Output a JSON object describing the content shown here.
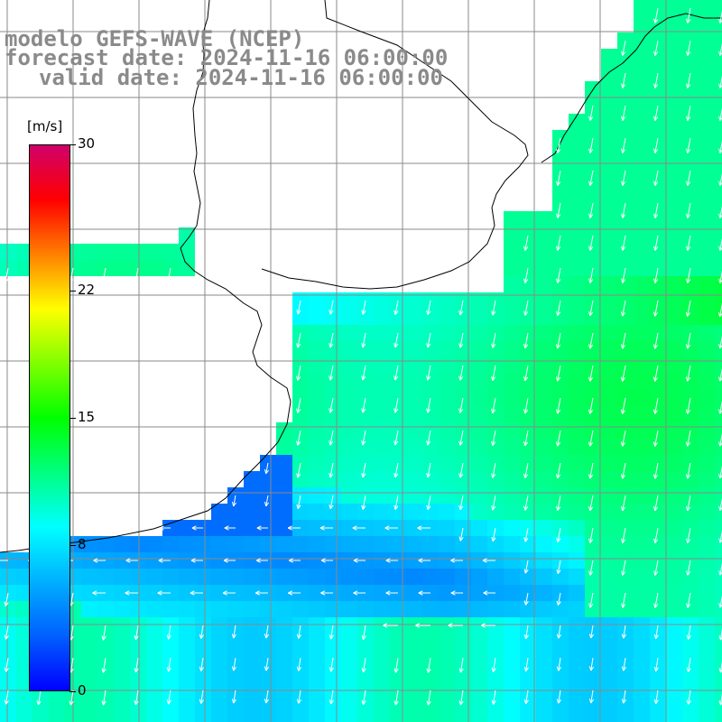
{
  "title": {
    "line1": "modelo GEFS-WAVE (NCEP)",
    "line2": "forecast date: 2024-11-16 06:00:00",
    "line3": "valid date: 2024-11-16 06:00:00"
  },
  "colorbar": {
    "unit": "[m/s]",
    "min": 0,
    "max": 30,
    "ticks": [
      {
        "label": "30",
        "value": 30
      },
      {
        "label": "22",
        "value": 22
      },
      {
        "label": "15",
        "value": 15
      },
      {
        "label": "8",
        "value": 8
      },
      {
        "label": "0",
        "value": 0
      }
    ],
    "colors": [
      "#0000ff",
      "#0060ff",
      "#00b0ff",
      "#00ffff",
      "#00ff80",
      "#00ff00",
      "#80ff00",
      "#ffff00",
      "#ff8000",
      "#ff0000",
      "#d0006a"
    ]
  },
  "map": {
    "variable": "wind speed and direction",
    "ocean_color": "#e8f4ff",
    "land_color": "#ffffff",
    "grid_color": "#8a8a8a",
    "coast_color": "#000000",
    "arrow_color": "#ffffff",
    "dominant_wind_direction": "from north-northeast (southward flow)"
  }
}
